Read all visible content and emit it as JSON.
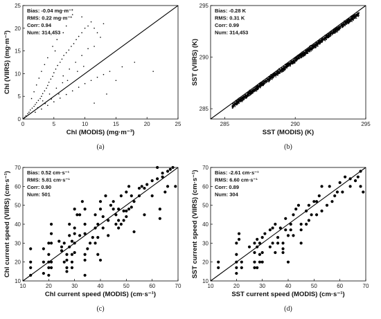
{
  "chart_data": [
    {
      "type": "scatter",
      "panel_label": "(a)",
      "xlabel": "Chl (MODIS) (mg·m⁻³)",
      "ylabel": "Chl (VIIRS) (mg·m⁻³)",
      "xlim": [
        0,
        25
      ],
      "ylim": [
        0,
        25
      ],
      "xticks": [
        "0",
        "5",
        "10",
        "15",
        "20",
        "25"
      ],
      "yticks": [
        "0",
        "5",
        "10",
        "15",
        "20",
        "25"
      ],
      "stats": [
        "Bias: -0.04 mg·m⁻³",
        "RMS: 0.22 mg·m⁻³",
        "Corr: 0.94",
        "Num: 314,453"
      ],
      "one_to_one_line": true,
      "marker": "small",
      "points": [
        [
          0.3,
          0.4
        ],
        [
          0.5,
          0.7
        ],
        [
          0.8,
          1.2
        ],
        [
          1.0,
          1.5
        ],
        [
          1.2,
          2.0
        ],
        [
          1.5,
          2.4
        ],
        [
          1.8,
          2.8
        ],
        [
          2.0,
          3.2
        ],
        [
          2.2,
          3.6
        ],
        [
          2.5,
          4.1
        ],
        [
          2.8,
          4.5
        ],
        [
          3.0,
          5.0
        ],
        [
          3.2,
          5.6
        ],
        [
          3.5,
          6.2
        ],
        [
          3.8,
          6.8
        ],
        [
          4.0,
          7.4
        ],
        [
          4.2,
          8.1
        ],
        [
          4.5,
          8.8
        ],
        [
          4.8,
          9.4
        ],
        [
          5.0,
          10.2
        ],
        [
          5.3,
          11.0
        ],
        [
          5.6,
          11.8
        ],
        [
          6.0,
          12.5
        ],
        [
          6.3,
          13.2
        ],
        [
          6.6,
          14.0
        ],
        [
          7.0,
          14.6
        ],
        [
          7.4,
          15.2
        ],
        [
          7.8,
          16.0
        ],
        [
          8.2,
          16.6
        ],
        [
          8.6,
          17.5
        ],
        [
          9.0,
          18.2
        ],
        [
          9.5,
          19.0
        ],
        [
          10.0,
          20.0
        ],
        [
          10.5,
          20.5
        ],
        [
          11.0,
          21.4
        ],
        [
          11.5,
          20.0
        ],
        [
          12.0,
          19.0
        ],
        [
          12.5,
          18.0
        ],
        [
          13.0,
          21.0
        ],
        [
          8.0,
          23.0
        ],
        [
          9.5,
          22.5
        ],
        [
          7.0,
          20.5
        ],
        [
          6.5,
          19.0
        ],
        [
          5.5,
          17.5
        ],
        [
          4.8,
          16.0
        ],
        [
          5.2,
          15.0
        ],
        [
          4.0,
          13.5
        ],
        [
          3.5,
          12.0
        ],
        [
          3.0,
          10.5
        ],
        [
          2.6,
          9.0
        ],
        [
          2.2,
          7.5
        ],
        [
          1.8,
          6.0
        ],
        [
          1.4,
          4.5
        ],
        [
          2.0,
          1.5
        ],
        [
          3.0,
          2.2
        ],
        [
          4.0,
          3.0
        ],
        [
          5.0,
          3.8
        ],
        [
          6.0,
          4.6
        ],
        [
          7.0,
          5.4
        ],
        [
          8.0,
          6.2
        ],
        [
          9.0,
          7.0
        ],
        [
          10.0,
          7.8
        ],
        [
          11.0,
          8.5
        ],
        [
          12.0,
          9.2
        ],
        [
          13.0,
          9.8
        ],
        [
          14.0,
          10.5
        ],
        [
          16.0,
          11.5
        ],
        [
          18.0,
          12.5
        ],
        [
          21.0,
          10.5
        ],
        [
          11.5,
          3.5
        ],
        [
          13.5,
          5.5
        ],
        [
          15.0,
          8.5
        ],
        [
          6.5,
          9.5
        ],
        [
          7.5,
          11.0
        ],
        [
          8.5,
          12.5
        ],
        [
          9.5,
          14.0
        ],
        [
          10.5,
          15.5
        ],
        [
          11.5,
          16.0
        ],
        [
          3.2,
          4.0
        ],
        [
          4.3,
          5.5
        ],
        [
          5.4,
          6.8
        ],
        [
          6.4,
          8.0
        ],
        [
          7.2,
          8.5
        ],
        [
          8.8,
          10.5
        ],
        [
          9.8,
          11.6
        ],
        [
          2.4,
          2.5
        ],
        [
          3.6,
          3.4
        ],
        [
          4.6,
          4.4
        ],
        [
          5.8,
          5.5
        ]
      ]
    },
    {
      "type": "scatter",
      "panel_label": "(b)",
      "xlabel": "SST (MODIS) (K)",
      "ylabel": "SST (VIIRS) (K)",
      "xlim": [
        284,
        295
      ],
      "ylim": [
        284,
        295
      ],
      "xticks": [
        "285",
        "290",
        "295"
      ],
      "yticks": [
        "285",
        "290",
        "295"
      ],
      "stats": [
        "Bias: -0.28 K",
        "RMS: 0.31 K",
        "Corr: 0.99",
        "Num: 314,453"
      ],
      "one_to_one_line": true,
      "marker": "dense-band",
      "band": {
        "x": [
          285.5,
          294.5
        ],
        "y_offset": -0.2,
        "half_width": 0.35
      }
    },
    {
      "type": "scatter",
      "panel_label": "(c)",
      "xlabel": "Chl current speed (MODIS) (cm·s⁻¹)",
      "ylabel": "Chl current speed (VIIRS) (cm·s⁻¹)",
      "xlim": [
        10,
        70
      ],
      "ylim": [
        10,
        70
      ],
      "xticks": [
        "10",
        "20",
        "30",
        "40",
        "50",
        "60",
        "70"
      ],
      "yticks": [
        "10",
        "20",
        "30",
        "40",
        "50",
        "60",
        "70"
      ],
      "stats": [
        "Bias: 0.52 cm·s⁻¹",
        "RMS: 5.81 cm·s⁻¹",
        "Corr: 0.90",
        "Num: 501"
      ],
      "one_to_one_line": true,
      "marker": "dot",
      "points": [
        [
          13,
          13
        ],
        [
          13,
          20
        ],
        [
          13,
          27
        ],
        [
          13,
          17
        ],
        [
          18,
          14
        ],
        [
          18,
          20
        ],
        [
          18,
          27
        ],
        [
          20,
          13
        ],
        [
          20,
          17
        ],
        [
          20,
          20
        ],
        [
          20,
          24
        ],
        [
          20,
          30
        ],
        [
          21,
          35
        ],
        [
          21,
          40
        ],
        [
          21,
          30
        ],
        [
          21,
          20
        ],
        [
          21,
          17
        ],
        [
          24,
          31
        ],
        [
          25,
          26
        ],
        [
          25,
          28
        ],
        [
          26,
          20
        ],
        [
          26,
          30
        ],
        [
          27,
          15
        ],
        [
          27,
          17
        ],
        [
          27,
          21
        ],
        [
          27,
          24
        ],
        [
          28,
          28
        ],
        [
          28,
          34
        ],
        [
          28,
          40
        ],
        [
          29,
          24
        ],
        [
          29,
          31
        ],
        [
          29,
          17
        ],
        [
          29,
          20
        ],
        [
          30,
          25
        ],
        [
          30,
          30
        ],
        [
          30,
          35
        ],
        [
          30,
          38
        ],
        [
          30,
          48
        ],
        [
          31,
          45
        ],
        [
          32,
          34
        ],
        [
          32,
          45
        ],
        [
          33,
          52
        ],
        [
          34,
          13
        ],
        [
          34,
          21
        ],
        [
          34,
          24
        ],
        [
          34,
          35
        ],
        [
          34,
          40
        ],
        [
          34,
          48
        ],
        [
          35,
          27
        ],
        [
          36,
          30
        ],
        [
          37,
          33
        ],
        [
          38,
          30
        ],
        [
          38,
          38
        ],
        [
          38,
          45
        ],
        [
          39,
          24
        ],
        [
          39,
          33
        ],
        [
          39,
          40
        ],
        [
          40,
          21
        ],
        [
          40,
          48
        ],
        [
          40,
          52
        ],
        [
          41,
          38
        ],
        [
          41,
          44
        ],
        [
          42,
          55
        ],
        [
          43,
          42
        ],
        [
          43,
          34
        ],
        [
          44,
          50
        ],
        [
          45,
          52
        ],
        [
          45,
          48
        ],
        [
          46,
          40
        ],
        [
          46,
          45
        ],
        [
          47,
          38
        ],
        [
          47,
          42
        ],
        [
          47,
          48
        ],
        [
          48,
          40
        ],
        [
          48,
          55
        ],
        [
          49,
          42
        ],
        [
          49,
          47
        ],
        [
          50,
          44
        ],
        [
          50,
          47
        ],
        [
          50,
          57
        ],
        [
          51,
          48
        ],
        [
          51,
          60
        ],
        [
          52,
          49
        ],
        [
          52,
          55
        ],
        [
          53,
          36
        ],
        [
          53,
          52
        ],
        [
          55,
          55
        ],
        [
          55,
          59
        ],
        [
          56,
          60
        ],
        [
          57,
          45
        ],
        [
          57,
          59
        ],
        [
          58,
          61
        ],
        [
          60,
          55
        ],
        [
          60,
          63
        ],
        [
          62,
          64
        ],
        [
          62,
          70
        ],
        [
          63,
          43
        ],
        [
          63,
          48
        ],
        [
          64,
          65
        ],
        [
          64,
          67
        ],
        [
          65,
          57
        ],
        [
          66,
          60
        ],
        [
          66,
          68
        ],
        [
          67,
          69
        ],
        [
          68,
          70
        ],
        [
          69,
          60
        ]
      ]
    },
    {
      "type": "scatter",
      "panel_label": "(d)",
      "xlabel": "SST current speed (MODIS) (cm·s⁻¹)",
      "ylabel": "SST current speed (VIIRS) (cm·s⁻¹)",
      "xlim": [
        10,
        70
      ],
      "ylim": [
        10,
        70
      ],
      "xticks": [
        "10",
        "20",
        "30",
        "40",
        "50",
        "60",
        "70"
      ],
      "yticks": [
        "10",
        "20",
        "30",
        "40",
        "50",
        "60",
        "70"
      ],
      "stats": [
        "Bias: -2.61 cm·s⁻¹",
        "RMS: 6.60 cm·s⁻¹",
        "Corr: 0.89",
        "Num: 304"
      ],
      "one_to_one_line": true,
      "marker": "dot",
      "points": [
        [
          13,
          17
        ],
        [
          13,
          20
        ],
        [
          20,
          14
        ],
        [
          20,
          17
        ],
        [
          20,
          20
        ],
        [
          20,
          24
        ],
        [
          20,
          30
        ],
        [
          21,
          32
        ],
        [
          21,
          35
        ],
        [
          22,
          20
        ],
        [
          22,
          17
        ],
        [
          25,
          28
        ],
        [
          27,
          17
        ],
        [
          27,
          20
        ],
        [
          27,
          25
        ],
        [
          27,
          30
        ],
        [
          28,
          17
        ],
        [
          28,
          28
        ],
        [
          28,
          32
        ],
        [
          29,
          20
        ],
        [
          29,
          24
        ],
        [
          29,
          30
        ],
        [
          30,
          20
        ],
        [
          30,
          25
        ],
        [
          30,
          33
        ],
        [
          31,
          35
        ],
        [
          33,
          28
        ],
        [
          33,
          37
        ],
        [
          34,
          30
        ],
        [
          34,
          38
        ],
        [
          35,
          40
        ],
        [
          35,
          25
        ],
        [
          36,
          30
        ],
        [
          36,
          33
        ],
        [
          37,
          38
        ],
        [
          38,
          25
        ],
        [
          38,
          27
        ],
        [
          38,
          30
        ],
        [
          39,
          37
        ],
        [
          39,
          43
        ],
        [
          40,
          20
        ],
        [
          40,
          34
        ],
        [
          41,
          37
        ],
        [
          41,
          40
        ],
        [
          42,
          34
        ],
        [
          42,
          45
        ],
        [
          43,
          48
        ],
        [
          44,
          50
        ],
        [
          45,
          30
        ],
        [
          45,
          37
        ],
        [
          45,
          40
        ],
        [
          47,
          40
        ],
        [
          47,
          47
        ],
        [
          48,
          42
        ],
        [
          48,
          50
        ],
        [
          49,
          45
        ],
        [
          50,
          52
        ],
        [
          51,
          45
        ],
        [
          51,
          52
        ],
        [
          52,
          55
        ],
        [
          53,
          47
        ],
        [
          53,
          60
        ],
        [
          55,
          50
        ],
        [
          56,
          60
        ],
        [
          57,
          52
        ],
        [
          58,
          55
        ],
        [
          59,
          57
        ],
        [
          60,
          62
        ],
        [
          61,
          57
        ],
        [
          62,
          65
        ],
        [
          64,
          60
        ],
        [
          64,
          64
        ],
        [
          66,
          63
        ],
        [
          67,
          65
        ],
        [
          68,
          68
        ],
        [
          68,
          60
        ],
        [
          69,
          57
        ]
      ]
    }
  ]
}
